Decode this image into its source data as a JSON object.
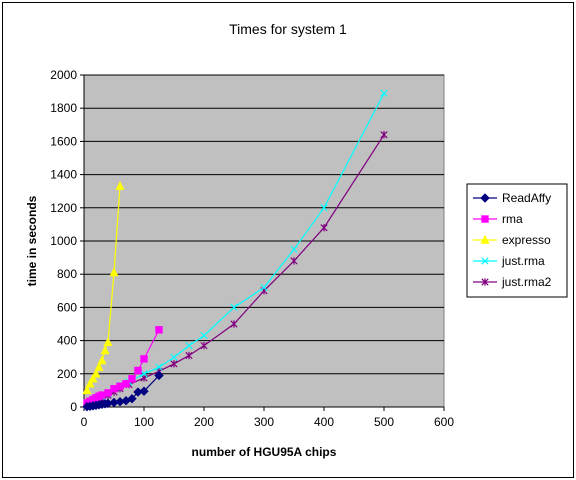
{
  "chart_data": {
    "type": "line",
    "title": "Times for system 1",
    "xlabel": "number of HGU95A chips",
    "ylabel": "time in seconds",
    "xlim": [
      0,
      600
    ],
    "ylim": [
      0,
      2000
    ],
    "x_ticks": [
      0,
      100,
      200,
      300,
      400,
      500,
      600
    ],
    "y_ticks": [
      0,
      200,
      400,
      600,
      800,
      1000,
      1200,
      1400,
      1600,
      1800,
      2000
    ],
    "grid": "horizontal",
    "plot_background": "#c0c0c0",
    "legend_position": "right",
    "series": [
      {
        "name": "ReadAffy",
        "color": "#000080",
        "marker": "diamond",
        "points": [
          [
            5,
            2
          ],
          [
            10,
            4
          ],
          [
            15,
            7
          ],
          [
            20,
            10
          ],
          [
            25,
            13
          ],
          [
            30,
            16
          ],
          [
            35,
            19
          ],
          [
            40,
            22
          ],
          [
            50,
            27
          ],
          [
            60,
            32
          ],
          [
            70,
            38
          ],
          [
            80,
            50
          ],
          [
            90,
            90
          ],
          [
            100,
            95
          ],
          [
            125,
            190
          ]
        ]
      },
      {
        "name": "rma",
        "color": "#ff00ff",
        "marker": "square",
        "points": [
          [
            5,
            25
          ],
          [
            10,
            35
          ],
          [
            15,
            45
          ],
          [
            20,
            55
          ],
          [
            25,
            65
          ],
          [
            30,
            72
          ],
          [
            40,
            85
          ],
          [
            50,
            110
          ],
          [
            60,
            125
          ],
          [
            70,
            140
          ],
          [
            80,
            170
          ],
          [
            90,
            220
          ],
          [
            100,
            290
          ],
          [
            125,
            465
          ]
        ]
      },
      {
        "name": "expresso",
        "color": "#ffff00",
        "marker": "triangle",
        "points": [
          [
            5,
            100
          ],
          [
            10,
            140
          ],
          [
            15,
            170
          ],
          [
            20,
            200
          ],
          [
            25,
            240
          ],
          [
            30,
            280
          ],
          [
            35,
            340
          ],
          [
            40,
            390
          ],
          [
            50,
            810
          ],
          [
            60,
            1330
          ]
        ]
      },
      {
        "name": "just.rma",
        "color": "#00ffff",
        "marker": "x",
        "points": [
          [
            5,
            10
          ],
          [
            10,
            20
          ],
          [
            20,
            40
          ],
          [
            30,
            60
          ],
          [
            40,
            80
          ],
          [
            50,
            110
          ],
          [
            60,
            130
          ],
          [
            75,
            150
          ],
          [
            100,
            200
          ],
          [
            125,
            240
          ],
          [
            150,
            300
          ],
          [
            175,
            370
          ],
          [
            200,
            430
          ],
          [
            250,
            600
          ],
          [
            300,
            720
          ],
          [
            350,
            950
          ],
          [
            400,
            1200
          ],
          [
            500,
            1890
          ]
        ]
      },
      {
        "name": "just.rma2",
        "color": "#800080",
        "marker": "star",
        "points": [
          [
            5,
            10
          ],
          [
            10,
            20
          ],
          [
            20,
            35
          ],
          [
            30,
            50
          ],
          [
            40,
            70
          ],
          [
            50,
            90
          ],
          [
            60,
            110
          ],
          [
            75,
            135
          ],
          [
            100,
            175
          ],
          [
            125,
            215
          ],
          [
            150,
            260
          ],
          [
            175,
            310
          ],
          [
            200,
            370
          ],
          [
            250,
            500
          ],
          [
            300,
            700
          ],
          [
            350,
            880
          ],
          [
            400,
            1080
          ],
          [
            500,
            1640
          ]
        ]
      }
    ]
  }
}
